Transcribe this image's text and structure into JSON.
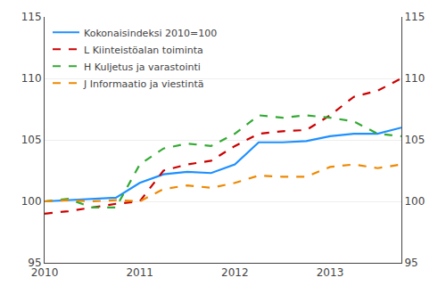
{
  "chart_data": {
    "type": "line",
    "categories": [
      "2010",
      null,
      null,
      null,
      "2011",
      null,
      null,
      null,
      "2012",
      null,
      null,
      null,
      "2013",
      null,
      null,
      null
    ],
    "series": [
      {
        "name": "Kokonaisindeksi 2010=100",
        "color": "#1e90ff",
        "line_style": "solid",
        "values": [
          100.0,
          100.1,
          100.2,
          100.3,
          101.5,
          102.2,
          102.4,
          102.3,
          103.0,
          104.8,
          104.8,
          104.9,
          105.3,
          105.5,
          105.5,
          106.0
        ]
      },
      {
        "name": "L Kiinteistöalan toiminta",
        "color": "#cc0000",
        "line_style": "dashed",
        "values": [
          99.0,
          99.2,
          99.5,
          99.8,
          100.0,
          102.5,
          103.0,
          103.3,
          104.5,
          105.5,
          105.7,
          105.8,
          107.0,
          108.5,
          109.0,
          110.0
        ]
      },
      {
        "name": "H Kuljetus ja varastointi",
        "color": "#33aa33",
        "line_style": "dashed",
        "values": [
          100.0,
          100.2,
          99.5,
          99.5,
          103.0,
          104.3,
          104.7,
          104.5,
          105.5,
          107.0,
          106.8,
          107.0,
          106.8,
          106.5,
          105.5,
          105.3
        ]
      },
      {
        "name": "J Informaatio ja viestintä",
        "color": "#ee8800",
        "line_style": "dashed",
        "values": [
          100.0,
          100.1,
          100.0,
          100.1,
          100.0,
          101.0,
          101.3,
          101.1,
          101.5,
          102.1,
          102.0,
          102.0,
          102.8,
          103.0,
          102.7,
          103.0
        ]
      }
    ],
    "ylim": [
      95,
      115
    ],
    "yticks": [
      95,
      100,
      105,
      110,
      115
    ],
    "y2lim": [
      95,
      115
    ],
    "y2ticks": [
      95,
      100,
      105,
      110,
      115
    ],
    "grid": true,
    "legend": "upper left"
  }
}
